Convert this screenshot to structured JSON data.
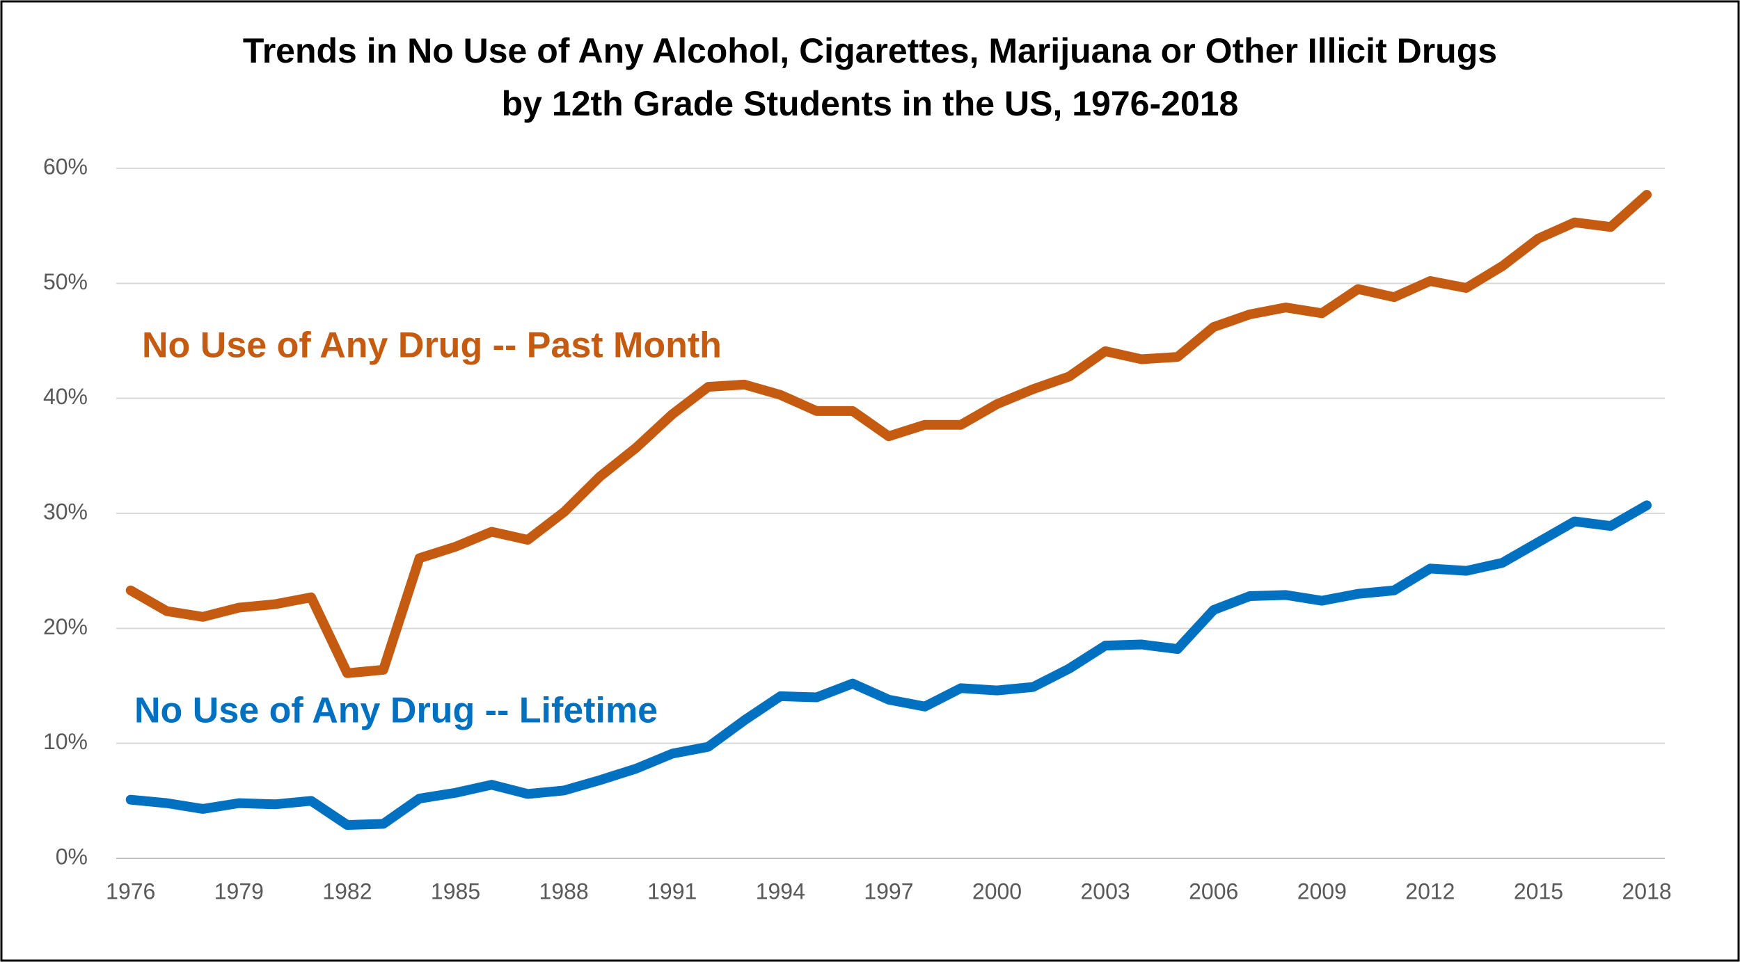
{
  "chart_data": {
    "type": "line",
    "title": [
      "Trends in No Use of Any Alcohol, Cigarettes, Marijuana or Other Illicit Drugs",
      "by 12th Grade Students in the US, 1976-2018"
    ],
    "x": [
      1976,
      1977,
      1978,
      1979,
      1980,
      1981,
      1982,
      1983,
      1984,
      1985,
      1986,
      1987,
      1988,
      1989,
      1990,
      1991,
      1992,
      1993,
      1994,
      1995,
      1996,
      1997,
      1998,
      1999,
      2000,
      2001,
      2002,
      2003,
      2004,
      2005,
      2006,
      2007,
      2008,
      2009,
      2010,
      2011,
      2012,
      2013,
      2014,
      2015,
      2016,
      2017,
      2018
    ],
    "series": [
      {
        "name": "No Use of Any Drug -- Past Month",
        "color": "#C55A11",
        "values": [
          23.3,
          21.5,
          21.0,
          21.8,
          22.1,
          22.7,
          16.1,
          16.4,
          26.1,
          27.1,
          28.4,
          27.7,
          30.1,
          33.2,
          35.7,
          38.6,
          41.0,
          41.2,
          40.3,
          38.9,
          38.9,
          36.7,
          37.7,
          37.7,
          39.5,
          40.8,
          41.9,
          44.1,
          43.4,
          43.6,
          46.2,
          47.3,
          47.9,
          47.4,
          49.5,
          48.8,
          50.2,
          49.6,
          51.5,
          53.9,
          55.3,
          54.9,
          57.7
        ]
      },
      {
        "name": "No Use of Any Drug -- Lifetime",
        "color": "#0070C0",
        "values": [
          5.1,
          4.8,
          4.3,
          4.8,
          4.7,
          5.0,
          2.9,
          3.0,
          5.2,
          5.7,
          6.4,
          5.6,
          5.9,
          6.8,
          7.8,
          9.1,
          9.7,
          12.0,
          14.1,
          14.0,
          15.2,
          13.8,
          13.2,
          14.8,
          14.6,
          14.9,
          16.5,
          18.5,
          18.6,
          18.2,
          21.6,
          22.8,
          22.9,
          22.4,
          23.0,
          23.3,
          25.2,
          25.0,
          25.7,
          27.5,
          29.3,
          28.9,
          30.7
        ]
      }
    ],
    "xlim": [
      1975.6,
      2018.5
    ],
    "xticks": [
      1976,
      1979,
      1982,
      1985,
      1988,
      1991,
      1994,
      1997,
      2000,
      2003,
      2006,
      2009,
      2012,
      2015,
      2018
    ],
    "ylim": [
      0,
      60
    ],
    "yticks": [
      {
        "value": 0,
        "label": "0%"
      },
      {
        "value": 10,
        "label": "10%"
      },
      {
        "value": 20,
        "label": "20%"
      },
      {
        "value": 30,
        "label": "30%"
      },
      {
        "value": 40,
        "label": "40%"
      },
      {
        "value": 50,
        "label": "50%"
      },
      {
        "value": 60,
        "label": "60%"
      }
    ],
    "grid": true
  }
}
